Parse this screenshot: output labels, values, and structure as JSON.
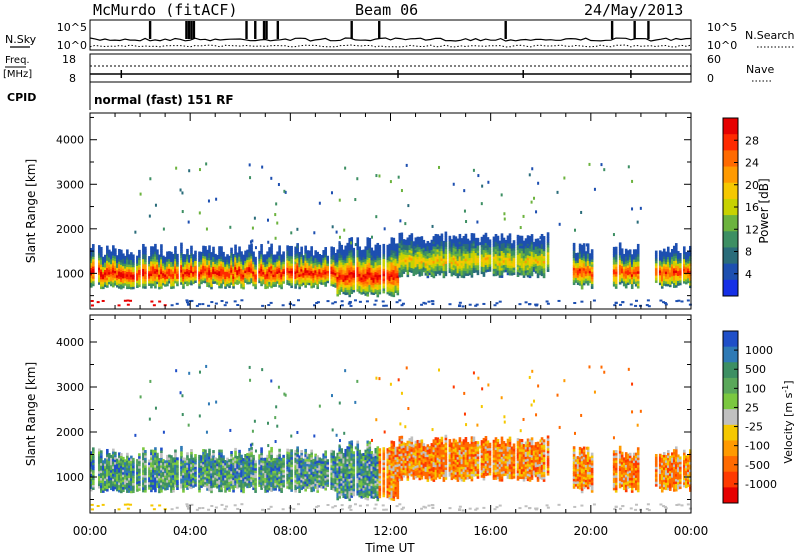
{
  "header": {
    "station": "McMurdo (fitACF)",
    "beam": "Beam 06",
    "date": "24/May/2013"
  },
  "top_strip": {
    "nsky_label": "N.Sky",
    "nsearch_label": "N.Search",
    "noise_ticks_left": [
      "10^5",
      "10^0"
    ],
    "noise_ticks_right": [
      "10^5",
      "10^0"
    ],
    "freq_label": "Freq.",
    "freq_unit": "[MHz]",
    "freq_ticks": [
      "18",
      "8"
    ],
    "nave_label": "Nave",
    "nave_ticks": [
      "60",
      "0"
    ],
    "cpid_label": "CPID",
    "cpid_value": "normal (fast) 151 RF"
  },
  "chart_data": [
    {
      "type": "heatmap",
      "panel": "power",
      "ylabel": "Slant Range [km]",
      "yticks": [
        "4000",
        "3000",
        "2000",
        "1000"
      ],
      "ylim": [
        200,
        4600
      ],
      "xlim_hours": [
        0,
        24
      ],
      "colorbar_label": "Power [dB]",
      "colorbar_ticks": [
        "28",
        "24",
        "20",
        "16",
        "12",
        "8",
        "4"
      ],
      "colorbar_colors": [
        "#e60000",
        "#ff2a00",
        "#ff6a00",
        "#ff9a00",
        "#f5c800",
        "#c8d200",
        "#6cb33e",
        "#3d8f63",
        "#2a6c7a",
        "#1d4fb0",
        "#1630e6"
      ]
    },
    {
      "type": "heatmap",
      "panel": "velocity",
      "ylabel": "Slant Range [km]",
      "yticks": [
        "4000",
        "3000",
        "2000",
        "1000"
      ],
      "ylim": [
        200,
        4600
      ],
      "xlim_hours": [
        0,
        24
      ],
      "colorbar_label_main": "Velocity [m s",
      "colorbar_label_sup": "-1",
      "colorbar_label_end": "]",
      "colorbar_ticks": [
        "1000",
        "500",
        "100",
        "25",
        "-25",
        "-100",
        "-500",
        "-1000"
      ],
      "colorbar_colors": [
        "#1f4fc8",
        "#2f7ab5",
        "#3d8f63",
        "#5aa85a",
        "#7bc840",
        "#c0c0c0",
        "#f5c800",
        "#ff9a00",
        "#ff6a00",
        "#ff3a00",
        "#e60000"
      ]
    }
  ],
  "x_axis": {
    "ticks": [
      "00:00",
      "04:00",
      "08:00",
      "12:00",
      "16:00",
      "20:00",
      "00:00"
    ],
    "label": "Time UT"
  }
}
